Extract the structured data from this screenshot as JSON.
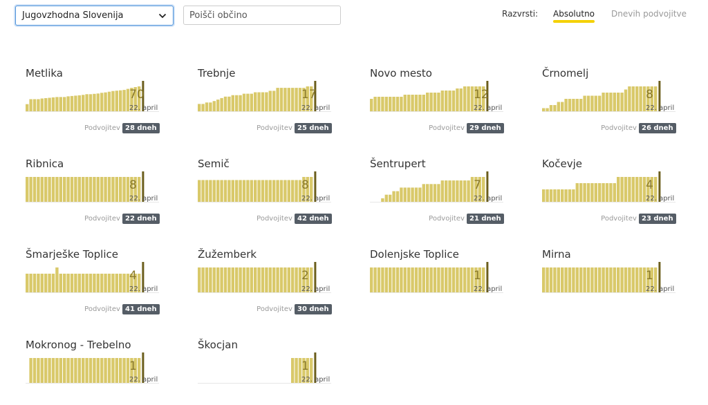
{
  "filters": {
    "region_selected": "Jugovzhodna Slovenija",
    "search_placeholder": "Poišči občino"
  },
  "sort": {
    "label": "Razvrsti:",
    "options": [
      "Absolutno",
      "Dnevih podvojitve"
    ],
    "active": "Absolutno",
    "accent_color": "#f4d103"
  },
  "colors": {
    "bar": "#d9c96a",
    "bar_line": "#6b5e1c",
    "value": "#8a7a2a",
    "badge": "#555d66"
  },
  "doubling_prefix": "Podvojitev v",
  "date_label": "22. april",
  "municipalities": [
    {
      "name": "Metlika",
      "value": "70",
      "doubling": "28 dneh",
      "series": [
        20,
        34,
        34,
        34,
        36,
        37,
        38,
        39,
        40,
        40,
        40,
        42,
        43,
        44,
        45,
        46,
        48,
        48,
        49,
        50,
        52,
        53,
        55,
        57,
        58,
        59,
        60,
        63,
        66,
        68,
        70
      ]
    },
    {
      "name": "Trebnje",
      "value": "17",
      "doubling": "25 dneh",
      "series": [
        5,
        5,
        6,
        6,
        7,
        8,
        9,
        10,
        10,
        11,
        11,
        11,
        12,
        12,
        12,
        13,
        13,
        13,
        13,
        14,
        14,
        16,
        16,
        16,
        16,
        16,
        16,
        16,
        16,
        17,
        17
      ]
    },
    {
      "name": "Novo mesto",
      "value": "12",
      "doubling": "29 dneh",
      "series": [
        6,
        7,
        7,
        7,
        7,
        7,
        7,
        7,
        7,
        8,
        8,
        8,
        8,
        8,
        8,
        9,
        9,
        9,
        9,
        10,
        10,
        10,
        10,
        11,
        11,
        12,
        12,
        12,
        12,
        12,
        12
      ]
    },
    {
      "name": "Črnomelj",
      "value": "8",
      "doubling": "26 dneh",
      "series": [
        1,
        1,
        2,
        2,
        3,
        3,
        4,
        4,
        4,
        4,
        4,
        5,
        5,
        5,
        5,
        5,
        6,
        6,
        6,
        6,
        6,
        6,
        7,
        8,
        8,
        8,
        8,
        8,
        8,
        8,
        8
      ]
    },
    {
      "name": "Ribnica",
      "value": "8",
      "doubling": "22 dneh",
      "series": [
        4,
        4,
        4,
        4,
        4,
        4,
        4,
        4,
        4,
        4,
        4,
        4,
        4,
        4,
        4,
        4,
        4,
        4,
        4,
        4,
        4,
        4,
        4,
        4,
        4,
        4,
        4,
        4,
        4,
        4,
        4
      ]
    },
    {
      "name": "Semič",
      "value": "8",
      "doubling": "42 dneh",
      "series": [
        7,
        7,
        7,
        7,
        7,
        7,
        7,
        7,
        7,
        7,
        7,
        7,
        7,
        7,
        7,
        7,
        7,
        7,
        7,
        7,
        7,
        7,
        7,
        7,
        7,
        7,
        7,
        7,
        8,
        8,
        8
      ]
    },
    {
      "name": "Šentrupert",
      "value": "7",
      "doubling": "21 dneh",
      "series": [
        0,
        0,
        0,
        1,
        2,
        2,
        3,
        3,
        4,
        4,
        4,
        4,
        4,
        4,
        5,
        5,
        5,
        5,
        5,
        6,
        6,
        6,
        6,
        6,
        6,
        6,
        6,
        7,
        7,
        7,
        7
      ]
    },
    {
      "name": "Kočevje",
      "value": "4",
      "doubling": "23 dneh",
      "series": [
        2,
        2,
        2,
        2,
        2,
        2,
        2,
        2,
        2,
        3,
        3,
        3,
        3,
        3,
        3,
        3,
        3,
        3,
        3,
        3,
        4,
        4,
        4,
        4,
        4,
        4,
        4,
        4,
        4,
        4,
        4
      ]
    },
    {
      "name": "Šmarješke Toplice",
      "value": "4",
      "doubling": "41 dneh",
      "series": [
        3,
        3,
        3,
        3,
        3,
        3,
        3,
        3,
        4,
        3,
        3,
        3,
        3,
        3,
        3,
        3,
        3,
        3,
        3,
        3,
        3,
        3,
        3,
        3,
        3,
        3,
        3,
        3,
        3,
        3,
        3
      ]
    },
    {
      "name": "Žužemberk",
      "value": "2",
      "doubling": "30 dneh",
      "series": [
        2,
        2,
        2,
        2,
        2,
        2,
        2,
        2,
        2,
        2,
        2,
        2,
        2,
        2,
        2,
        2,
        2,
        2,
        2,
        2,
        2,
        2,
        2,
        2,
        2,
        2,
        2,
        2,
        2,
        2,
        2
      ]
    },
    {
      "name": "Dolenjske Toplice",
      "value": "1",
      "doubling": "",
      "series": [
        1,
        1,
        1,
        1,
        1,
        1,
        1,
        1,
        1,
        1,
        1,
        1,
        1,
        1,
        1,
        1,
        1,
        1,
        1,
        1,
        1,
        1,
        1,
        1,
        1,
        1,
        1,
        1,
        1,
        1,
        1
      ]
    },
    {
      "name": "Mirna",
      "value": "1",
      "doubling": "",
      "series": [
        1,
        1,
        1,
        1,
        1,
        1,
        1,
        1,
        1,
        1,
        1,
        1,
        1,
        1,
        1,
        1,
        1,
        1,
        1,
        1,
        1,
        1,
        1,
        1,
        1,
        1,
        1,
        1,
        1,
        1,
        1
      ]
    },
    {
      "name": "Mokronog - Trebelno",
      "value": "1",
      "doubling": "",
      "series": [
        0,
        1,
        1,
        1,
        1,
        1,
        1,
        1,
        1,
        1,
        1,
        1,
        1,
        1,
        1,
        1,
        1,
        1,
        1,
        1,
        1,
        1,
        1,
        1,
        1,
        1,
        1,
        1,
        1,
        1,
        1
      ]
    },
    {
      "name": "Škocjan",
      "value": "1",
      "doubling": "",
      "series": [
        0,
        0,
        0,
        0,
        0,
        0,
        0,
        0,
        0,
        0,
        0,
        0,
        0,
        0,
        0,
        0,
        0,
        0,
        0,
        0,
        0,
        0,
        0,
        0,
        0,
        1,
        1,
        1,
        1,
        1,
        1
      ]
    }
  ]
}
